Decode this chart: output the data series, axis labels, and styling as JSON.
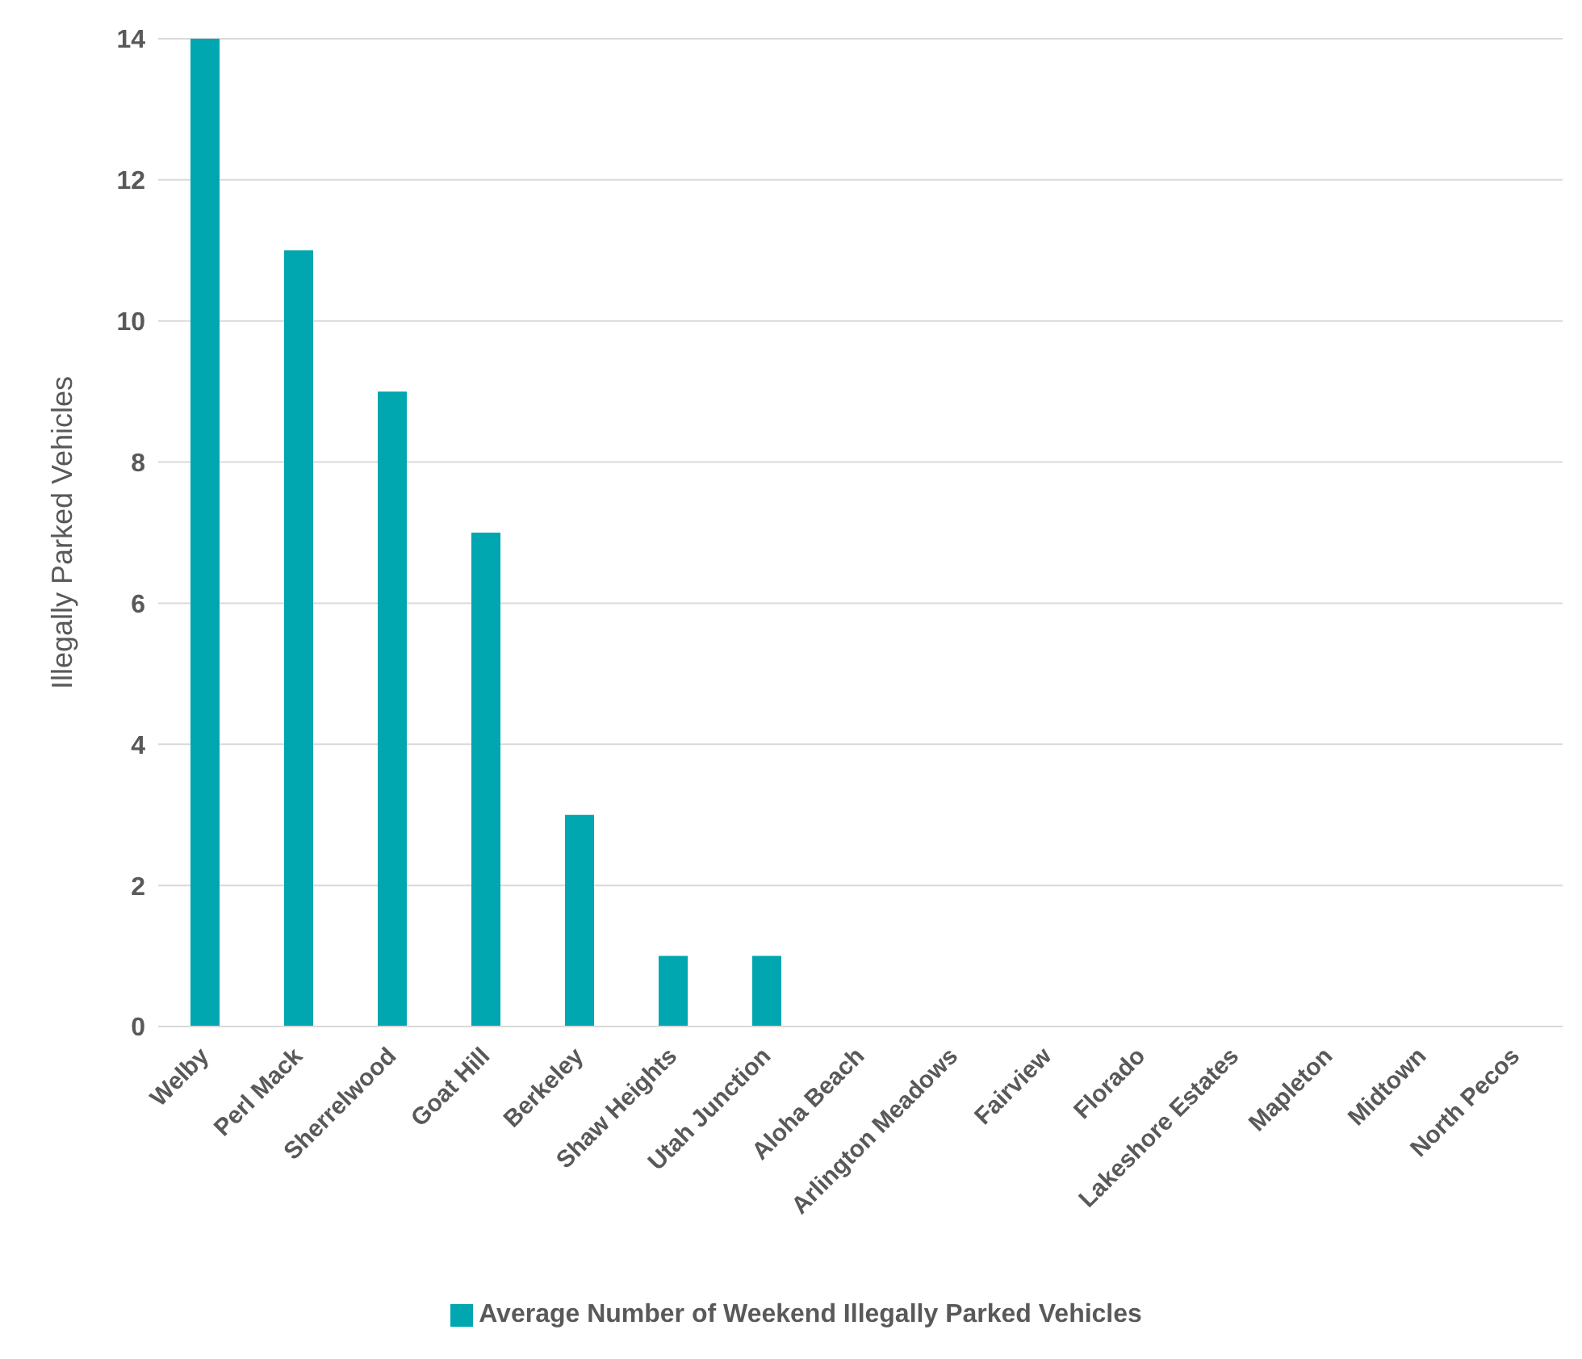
{
  "chart_data": {
    "type": "bar",
    "ylabel": "Illegally Parked Vehicles",
    "categories": [
      "Welby",
      "Perl Mack",
      "Sherrelwood",
      "Goat Hill",
      "Berkeley",
      "Shaw Heights",
      "Utah Junction",
      "Aloha Beach",
      "Arlington Meadows",
      "Fairview",
      "Florado",
      "Lakeshore Estates",
      "Mapleton",
      "Midtown",
      "North Pecos"
    ],
    "series": [
      {
        "name": "Average Number of Weekend Illegally Parked Vehicles",
        "color": "#00a6b0",
        "values": [
          14,
          11,
          9,
          7,
          3,
          1,
          1,
          0,
          0,
          0,
          0,
          0,
          0,
          0,
          0
        ]
      }
    ],
    "ylim": [
      0,
      14
    ],
    "yticks": [
      0,
      2,
      4,
      6,
      8,
      10,
      12,
      14
    ],
    "grid": "y",
    "legend": "bottom"
  }
}
